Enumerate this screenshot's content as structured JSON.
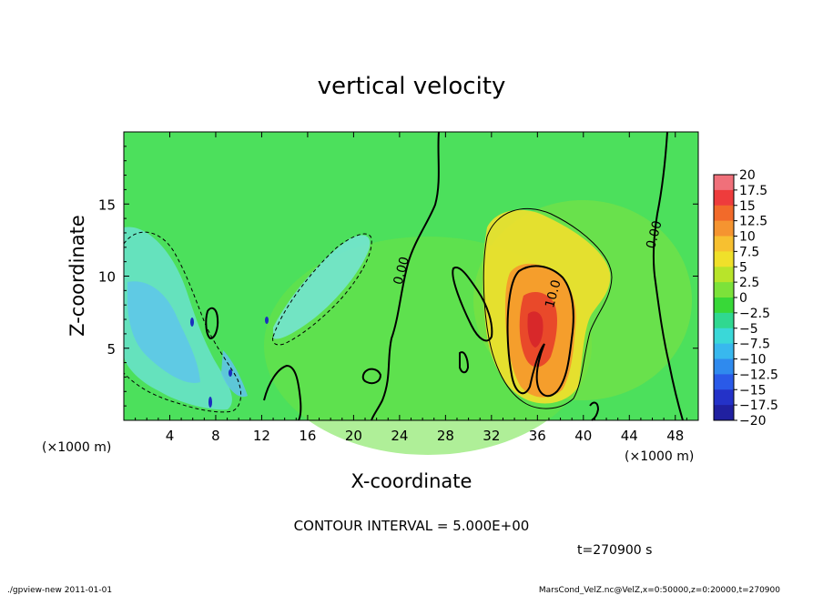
{
  "chart_data": {
    "type": "heatmap",
    "title": "vertical velocity",
    "xlabel": "X-coordinate",
    "ylabel": "Z-coordinate",
    "x_unit": "(×1000 m)",
    "y_unit": "(×1000 m)",
    "xlim": [
      0,
      50
    ],
    "ylim": [
      0,
      20
    ],
    "x_ticks": [
      "4",
      "8",
      "12",
      "16",
      "20",
      "24",
      "28",
      "32",
      "36",
      "40",
      "44",
      "48"
    ],
    "y_ticks": [
      "5",
      "10",
      "15"
    ],
    "colorbar": {
      "labels": [
        "20",
        "17.5",
        "15",
        "12.5",
        "10",
        "7.5",
        "5",
        "2.5",
        "0",
        "−2.5",
        "−5",
        "−7.5",
        "−10",
        "−12.5",
        "−15",
        "−17.5",
        "−20"
      ],
      "min": -20,
      "max": 20,
      "step": 2.5
    },
    "contour_labels": [
      {
        "text": "0.00",
        "x": 24.5,
        "y": 10.3
      },
      {
        "text": "10.0",
        "x": 37.7,
        "y": 8.7
      },
      {
        "text": "0.00",
        "x": 46.5,
        "y": 12.8
      }
    ],
    "features": [
      {
        "kind": "updraft",
        "peak": 20,
        "x": 35.8,
        "y": 6.5
      },
      {
        "kind": "downdraft",
        "peak": -7.5,
        "x": 4.8,
        "y": 6.5
      },
      {
        "kind": "downdraft",
        "peak": -5,
        "x": 18.5,
        "y": 9.5
      }
    ],
    "contour_interval_text": "CONTOUR INTERVAL = 5.000E+00",
    "time_text": "t=270900 s"
  },
  "footer": {
    "left": "./gpview-new   2011-01-01",
    "right": "MarsCond_VelZ.nc@VelZ,x=0:50000,z=0:20000,t=270900"
  }
}
